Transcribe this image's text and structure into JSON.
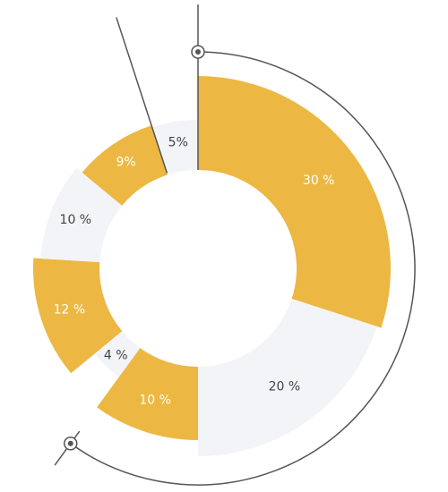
{
  "chart_data": {
    "type": "donut",
    "categories": [
      null,
      null,
      null,
      null,
      null,
      null,
      null,
      null
    ],
    "values": [
      30,
      20,
      10,
      4,
      12,
      10,
      9,
      5
    ],
    "value_labels": [
      "30 %",
      "20 %",
      "10 %",
      "4 %",
      "12 %",
      "10 %",
      "9%",
      "5%"
    ],
    "colors": [
      "#ecb843",
      "#f3f4f8",
      "#ecb843",
      "#f3f4f8",
      "#ecb843",
      "#f3f4f8",
      "#ecb843",
      "#f3f4f8"
    ]
  }
}
